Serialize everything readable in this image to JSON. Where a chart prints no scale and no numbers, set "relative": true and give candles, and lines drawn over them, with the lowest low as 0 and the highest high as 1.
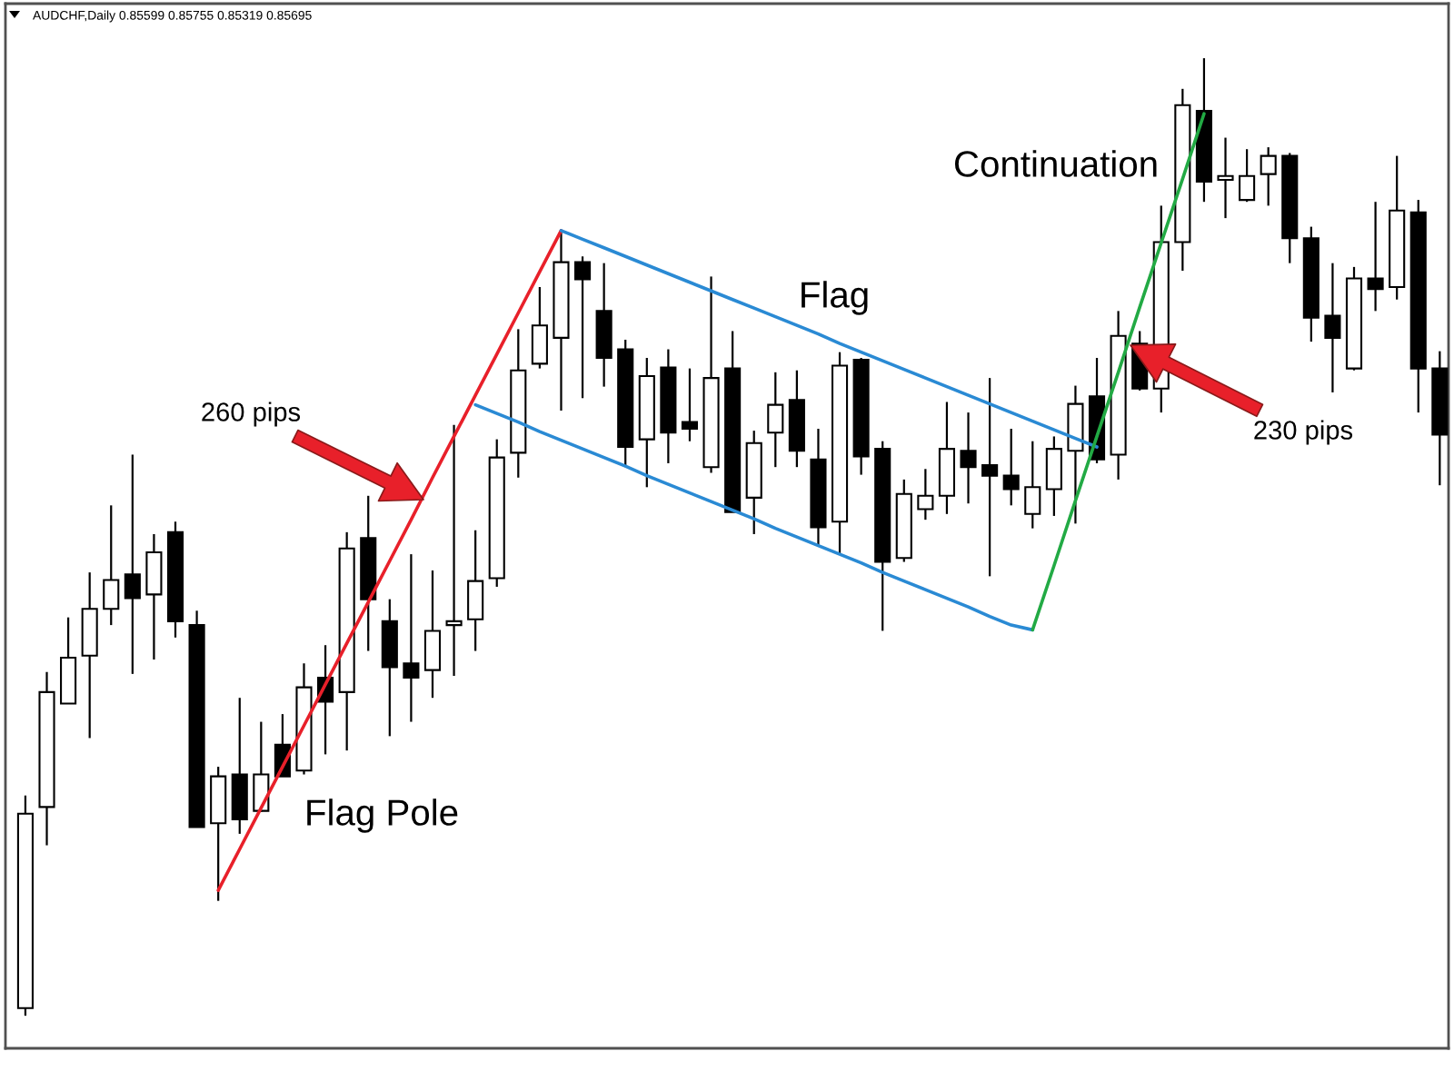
{
  "chart_data": {
    "type": "candlestick",
    "title": "AUDCHF,Daily 0.85599 0.85755 0.85319 0.85695",
    "relative": true,
    "categories": [
      null,
      null,
      null,
      null,
      null,
      null,
      null,
      null,
      null,
      null,
      null,
      null,
      null,
      null,
      null,
      null,
      null,
      null,
      null,
      null,
      null,
      null,
      null,
      null,
      null,
      null,
      null,
      null,
      null,
      null,
      null,
      null,
      null,
      null,
      null,
      null,
      null,
      null,
      null,
      null,
      null,
      null,
      null,
      null,
      null,
      null,
      null,
      null,
      null,
      null,
      null,
      null,
      null,
      null,
      null,
      null,
      null,
      null,
      null,
      null,
      null,
      null,
      null,
      null,
      null,
      null,
      null
    ],
    "series": [
      {
        "color": "#000000",
        "ohlc": [
          [
            0.008,
            0.23,
            0,
            0.211
          ],
          [
            0.218,
            0.359,
            0.178,
            0.338
          ],
          [
            0.326,
            0.416,
            0.326,
            0.374
          ],
          [
            0.376,
            0.463,
            0.29,
            0.425
          ],
          [
            0.425,
            0.533,
            0.408,
            0.455
          ],
          [
            0.461,
            0.586,
            0.357,
            0.436
          ],
          [
            0.44,
            0.503,
            0.372,
            0.484
          ],
          [
            0.505,
            0.516,
            0.395,
            0.412
          ],
          [
            0.408,
            0.423,
            0.197,
            0.197
          ],
          [
            0.201,
            0.26,
            0.12,
            0.25
          ],
          [
            0.252,
            0.332,
            0.19,
            0.205
          ],
          [
            0.214,
            0.307,
            0.213,
            0.252
          ],
          [
            0.283,
            0.315,
            0.25,
            0.25
          ],
          [
            0.256,
            0.368,
            0.252,
            0.343
          ],
          [
            0.353,
            0.387,
            0.273,
            0.328
          ],
          [
            0.338,
            0.505,
            0.277,
            0.488
          ],
          [
            0.499,
            0.543,
            0.381,
            0.435
          ],
          [
            0.412,
            0.435,
            0.292,
            0.364
          ],
          [
            0.368,
            0.482,
            0.307,
            0.353
          ],
          [
            0.361,
            0.465,
            0.332,
            0.402
          ],
          [
            0.408,
            0.617,
            0.355,
            0.412
          ],
          [
            0.414,
            0.507,
            0.381,
            0.454
          ],
          [
            0.457,
            0.602,
            0.448,
            0.583
          ],
          [
            0.588,
            0.717,
            0.562,
            0.674
          ],
          [
            0.681,
            0.761,
            0.676,
            0.721
          ],
          [
            0.708,
            0.818,
            0.632,
            0.787
          ],
          [
            0.787,
            0.793,
            0.645,
            0.769
          ],
          [
            0.736,
            0.786,
            0.657,
            0.687
          ],
          [
            0.696,
            0.706,
            0.573,
            0.594
          ],
          [
            0.602,
            0.687,
            0.552,
            0.668
          ],
          [
            0.677,
            0.696,
            0.577,
            0.609
          ],
          [
            0.62,
            0.676,
            0.6,
            0.613
          ],
          [
            0.573,
            0.772,
            0.567,
            0.666
          ],
          [
            0.676,
            0.715,
            0.526,
            0.526
          ],
          [
            0.541,
            0.611,
            0.503,
            0.598
          ],
          [
            0.609,
            0.672,
            0.573,
            0.638
          ],
          [
            0.643,
            0.674,
            0.573,
            0.59
          ],
          [
            0.581,
            0.613,
            0.491,
            0.51
          ],
          [
            0.516,
            0.693,
            0.482,
            0.679
          ],
          [
            0.685,
            0.687,
            0.565,
            0.584
          ],
          [
            0.592,
            0.6,
            0.402,
            0.474
          ],
          [
            0.478,
            0.56,
            0.474,
            0.545
          ],
          [
            0.529,
            0.571,
            0.518,
            0.543
          ],
          [
            0.543,
            0.641,
            0.524,
            0.592
          ],
          [
            0.59,
            0.63,
            0.535,
            0.573
          ],
          [
            0.575,
            0.666,
            0.459,
            0.564
          ],
          [
            0.564,
            0.613,
            0.533,
            0.55
          ],
          [
            0.524,
            0.6,
            0.509,
            0.552
          ],
          [
            0.55,
            0.605,
            0.522,
            0.592
          ],
          [
            0.59,
            0.658,
            0.514,
            0.639
          ],
          [
            0.647,
            0.687,
            0.577,
            0.581
          ],
          [
            0.586,
            0.736,
            0.56,
            0.71
          ],
          [
            0.702,
            0.715,
            0.653,
            0.655
          ],
          [
            0.655,
            0.846,
            0.63,
            0.808
          ],
          [
            0.808,
            0.968,
            0.778,
            0.951
          ],
          [
            0.945,
            1,
            0.85,
            0.871
          ],
          [
            0.873,
            0.917,
            0.833,
            0.877
          ],
          [
            0.852,
            0.905,
            0.85,
            0.877
          ],
          [
            0.879,
            0.907,
            0.846,
            0.898
          ],
          [
            0.898,
            0.901,
            0.786,
            0.812
          ],
          [
            0.812,
            0.824,
            0.704,
            0.729
          ],
          [
            0.731,
            0.786,
            0.651,
            0.708
          ],
          [
            0.676,
            0.782,
            0.674,
            0.77
          ],
          [
            0.77,
            0.85,
            0.736,
            0.759
          ],
          [
            0.761,
            0.898,
            0.748,
            0.841
          ],
          [
            0.839,
            0.852,
            0.63,
            0.676
          ],
          [
            0.676,
            0.694,
            0.554,
            0.607
          ]
        ]
      },
      {
        "type": "line",
        "color": "#e8202a",
        "values": [
          null,
          null,
          null,
          null,
          null,
          null,
          null,
          null,
          null,
          0.131,
          0.174,
          0.217,
          0.26,
          0.303,
          0.346,
          0.389,
          0.432,
          0.475,
          0.518,
          0.562,
          0.605,
          0.648,
          0.691,
          0.734,
          0.777,
          0.82,
          null,
          null,
          null,
          null,
          null,
          null,
          null,
          null,
          null,
          null,
          null,
          null,
          null,
          null,
          null,
          null,
          null,
          null,
          null,
          null,
          null,
          null,
          null,
          null,
          null,
          null,
          null,
          null,
          null,
          null,
          null,
          null,
          null,
          null,
          null,
          null,
          null,
          null,
          null,
          null,
          null
        ]
      },
      {
        "type": "line",
        "color": "#2a8ad4",
        "values": [
          null,
          null,
          null,
          null,
          null,
          null,
          null,
          null,
          null,
          null,
          null,
          null,
          null,
          null,
          null,
          null,
          null,
          null,
          null,
          null,
          null,
          null,
          null,
          null,
          null,
          0.82,
          0.811,
          0.802,
          0.793,
          0.784,
          0.775,
          0.766,
          0.757,
          0.748,
          0.739,
          0.73,
          0.721,
          0.712,
          0.702,
          0.693,
          0.684,
          0.675,
          0.666,
          0.657,
          0.648,
          0.639,
          0.63,
          0.621,
          0.612,
          0.603,
          0.594,
          null,
          null,
          null,
          null,
          null,
          null,
          null,
          null,
          null,
          null,
          null,
          null,
          null,
          null,
          null,
          null
        ]
      },
      {
        "type": "line",
        "color": "#2a8ad4",
        "values": [
          null,
          null,
          null,
          null,
          null,
          null,
          null,
          null,
          null,
          null,
          null,
          null,
          null,
          null,
          null,
          null,
          null,
          null,
          null,
          null,
          null,
          0.638,
          0.629,
          0.62,
          0.61,
          0.601,
          0.592,
          0.583,
          0.574,
          0.564,
          0.555,
          0.546,
          0.537,
          0.528,
          0.519,
          0.509,
          0.5,
          0.491,
          0.482,
          0.473,
          0.463,
          0.454,
          0.445,
          0.436,
          0.427,
          0.417,
          0.408,
          0.403,
          null,
          null,
          null,
          null,
          null,
          null,
          null,
          null,
          null,
          null,
          null,
          null,
          null,
          null,
          null,
          null,
          null,
          null,
          null
        ]
      },
      {
        "type": "line",
        "color": "#22aa44",
        "values": [
          null,
          null,
          null,
          null,
          null,
          null,
          null,
          null,
          null,
          null,
          null,
          null,
          null,
          null,
          null,
          null,
          null,
          null,
          null,
          null,
          null,
          null,
          null,
          null,
          null,
          null,
          null,
          null,
          null,
          null,
          null,
          null,
          null,
          null,
          null,
          null,
          null,
          null,
          null,
          null,
          null,
          null,
          null,
          null,
          null,
          null,
          null,
          0.403,
          0.47,
          0.538,
          0.605,
          0.672,
          0.74,
          0.807,
          0.874,
          0.942,
          null,
          null,
          null,
          null,
          null,
          null,
          null,
          null,
          null,
          null,
          null
        ]
      }
    ],
    "annotations": [
      "Continuation",
      "Flag",
      "260 pips",
      "230 pips",
      "Flag Pole"
    ]
  }
}
